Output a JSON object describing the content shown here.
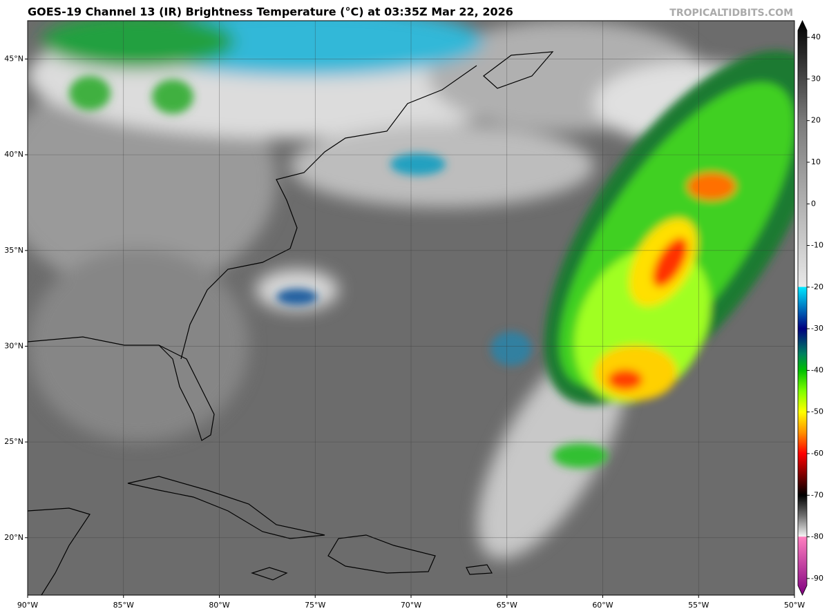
{
  "header": {
    "title": "GOES-19 Channel 13 (IR) Brightness Temperature (°C) at 03:35Z Mar 22, 2026",
    "source": "TROPICALTIDBITS.COM"
  },
  "map": {
    "lon_range": [
      -90,
      -50
    ],
    "lat_range": [
      17,
      47
    ],
    "lon_ticks": [
      {
        "value": -90,
        "label": "90°W"
      },
      {
        "value": -85,
        "label": "85°W"
      },
      {
        "value": -80,
        "label": "80°W"
      },
      {
        "value": -75,
        "label": "75°W"
      },
      {
        "value": -70,
        "label": "70°W"
      },
      {
        "value": -65,
        "label": "65°W"
      },
      {
        "value": -60,
        "label": "60°W"
      },
      {
        "value": -55,
        "label": "55°W"
      },
      {
        "value": -50,
        "label": "50°W"
      }
    ],
    "lat_ticks": [
      {
        "value": 20,
        "label": "20°N"
      },
      {
        "value": 25,
        "label": "25°N"
      },
      {
        "value": 30,
        "label": "30°N"
      },
      {
        "value": 35,
        "label": "35°N"
      },
      {
        "value": 40,
        "label": "40°N"
      },
      {
        "value": 45,
        "label": "45°N"
      }
    ]
  },
  "colorbar": {
    "range": [
      -94,
      44
    ],
    "ticks": [
      40,
      30,
      20,
      10,
      0,
      -10,
      -20,
      -30,
      -40,
      -50,
      -60,
      -70,
      -80,
      -90
    ],
    "stops": [
      {
        "value": 44,
        "color": "#000000"
      },
      {
        "value": 20,
        "color": "#7a7a7a"
      },
      {
        "value": -19.9,
        "color": "#e8e8e8"
      },
      {
        "value": -20,
        "color": "#00e8ff"
      },
      {
        "value": -30,
        "color": "#000080"
      },
      {
        "value": -36,
        "color": "#008060"
      },
      {
        "value": -40,
        "color": "#00c000"
      },
      {
        "value": -45,
        "color": "#80ff00"
      },
      {
        "value": -50,
        "color": "#ffff00"
      },
      {
        "value": -55,
        "color": "#ff9000"
      },
      {
        "value": -60,
        "color": "#ff0000"
      },
      {
        "value": -65,
        "color": "#800000"
      },
      {
        "value": -70,
        "color": "#000000"
      },
      {
        "value": -75,
        "color": "#707070"
      },
      {
        "value": -79.9,
        "color": "#f4f4f4"
      },
      {
        "value": -80,
        "color": "#ff80c0"
      },
      {
        "value": -94,
        "color": "#800080"
      }
    ]
  }
}
